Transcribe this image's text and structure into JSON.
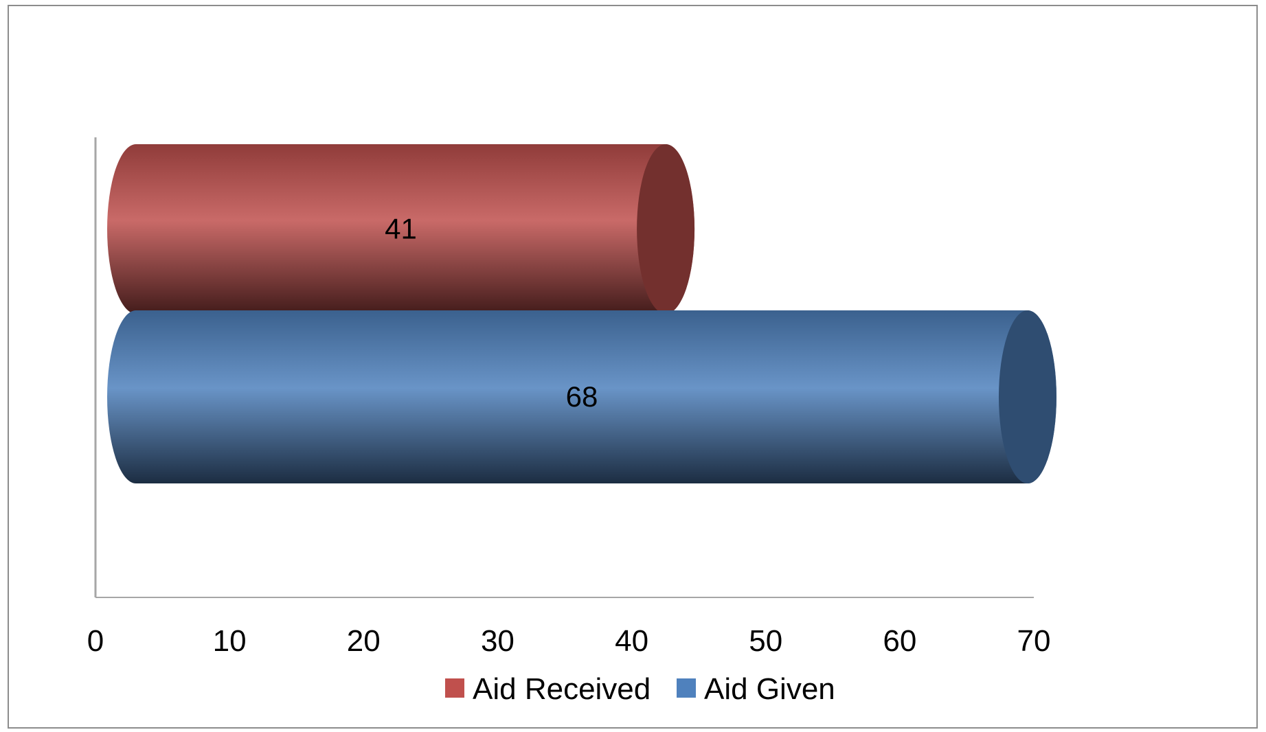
{
  "chart_data": {
    "type": "bar",
    "orientation": "horizontal",
    "style": "3d-cylinder",
    "categories": [
      ""
    ],
    "series": [
      {
        "name": "Aid Received",
        "values": [
          41
        ],
        "color": "#C0504D"
      },
      {
        "name": "Aid Given",
        "values": [
          68
        ],
        "color": "#4F81BD"
      }
    ],
    "xlim": [
      0,
      70
    ],
    "xticks": [
      0,
      10,
      20,
      30,
      40,
      50,
      60,
      70
    ],
    "data_labels": [
      "41",
      "68"
    ],
    "grid": false,
    "legend_position": "bottom",
    "title": "",
    "xlabel": "",
    "ylabel": ""
  }
}
